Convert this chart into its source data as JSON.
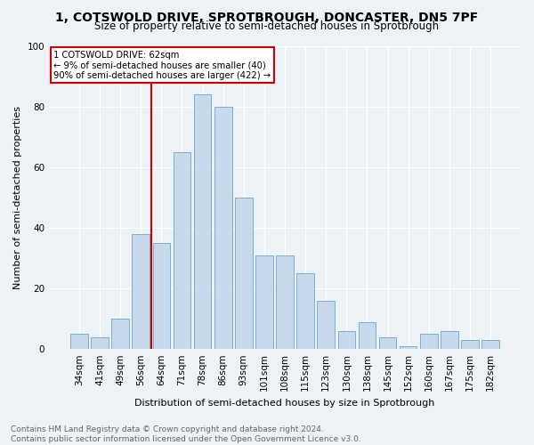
{
  "title": "1, COTSWOLD DRIVE, SPROTBROUGH, DONCASTER, DN5 7PF",
  "subtitle": "Size of property relative to semi-detached houses in Sprotbrough",
  "xlabel": "Distribution of semi-detached houses by size in Sprotbrough",
  "ylabel": "Number of semi-detached properties",
  "categories": [
    "34sqm",
    "41sqm",
    "49sqm",
    "56sqm",
    "64sqm",
    "71sqm",
    "78sqm",
    "86sqm",
    "93sqm",
    "101sqm",
    "108sqm",
    "115sqm",
    "123sqm",
    "130sqm",
    "138sqm",
    "145sqm",
    "152sqm",
    "160sqm",
    "167sqm",
    "175sqm",
    "182sqm"
  ],
  "values": [
    5,
    4,
    10,
    38,
    35,
    65,
    84,
    80,
    50,
    31,
    31,
    25,
    16,
    6,
    9,
    4,
    1,
    5,
    6,
    3,
    3
  ],
  "bar_color": "#c9d9ec",
  "bar_edge_color": "#7aafd4",
  "property_line_index": 4,
  "annotation_line1": "1 COTSWOLD DRIVE: 62sqm",
  "annotation_line2": "← 9% of semi-detached houses are smaller (40)",
  "annotation_line3": "90% of semi-detached houses are larger (422) →",
  "annotation_box_color": "#cc0000",
  "footer_line1": "Contains HM Land Registry data © Crown copyright and database right 2024.",
  "footer_line2": "Contains public sector information licensed under the Open Government Licence v3.0.",
  "ylim": [
    0,
    100
  ],
  "yticks": [
    0,
    20,
    40,
    60,
    80,
    100
  ],
  "bg_color": "#edf2f7",
  "grid_color": "#ffffff",
  "title_fontsize": 10,
  "subtitle_fontsize": 8.5,
  "ylabel_fontsize": 8,
  "xlabel_fontsize": 8,
  "tick_fontsize": 7.5,
  "footer_fontsize": 6.5
}
